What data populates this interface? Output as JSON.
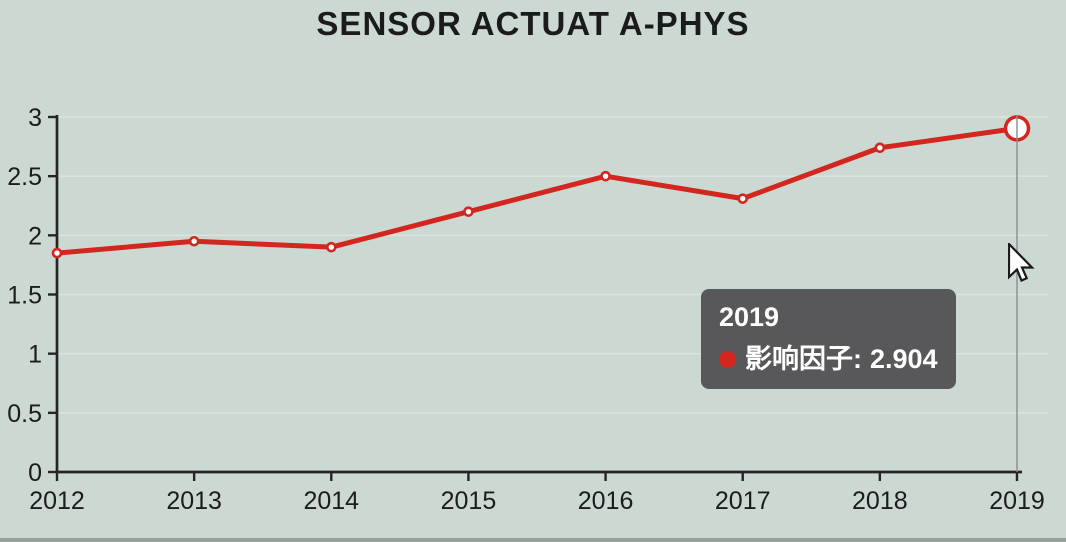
{
  "window": {
    "title": "SENSOR ACTUAT A-PHYS"
  },
  "colors": {
    "background": "#ccd8d2",
    "line": "#d3261e",
    "axis": "#252525",
    "text": "#1c1c1c",
    "grid": "#dce6e0",
    "marker_fill": "#ffffff",
    "crosshair": "#8a8f8c",
    "tooltip_bg": "#58585a",
    "tooltip_text": "#ffffff",
    "bottom_strip": "#97a19a"
  },
  "chart_data": {
    "type": "line",
    "title": "SENSOR ACTUAT A-PHYS",
    "categories": [
      "2012",
      "2013",
      "2014",
      "2015",
      "2016",
      "2017",
      "2018",
      "2019"
    ],
    "series": [
      {
        "name": "影响因子",
        "color": "#d3261e",
        "values": [
          1.85,
          1.95,
          1.9,
          2.2,
          2.5,
          2.31,
          2.74,
          2.904
        ]
      }
    ],
    "xlabel": "",
    "ylabel": "",
    "ylim": [
      0,
      3
    ],
    "yticks": [
      0,
      0.5,
      1,
      1.5,
      2,
      2.5,
      3
    ],
    "ytick_labels": [
      "0",
      "0.5",
      "1",
      "1.5",
      "2",
      "2.5",
      "3"
    ],
    "grid": true,
    "legend_position": "none",
    "highlight": {
      "category": "2019",
      "value": 2.904
    }
  },
  "tooltip": {
    "year": "2019",
    "series_label": "影响因子:",
    "value": "2.904"
  },
  "cursor": {
    "type": "arrow-pointer"
  }
}
